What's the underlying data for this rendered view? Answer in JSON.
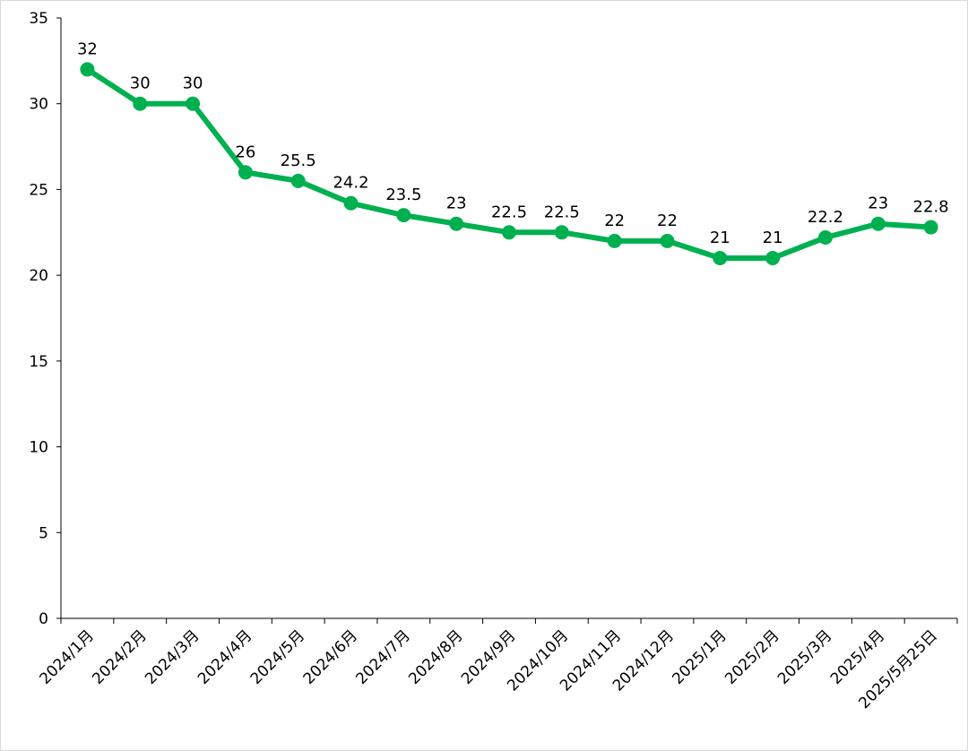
{
  "chart_data": {
    "type": "line",
    "title": "",
    "xlabel": "",
    "ylabel": "",
    "categories": [
      "2024/1月",
      "2024/2月",
      "2024/3月",
      "2024/4月",
      "2024/5月",
      "2024/6月",
      "2024/7月",
      "2024/8月",
      "2024/9月",
      "2024/10月",
      "2024/11月",
      "2024/12月",
      "2025/1月",
      "2025/2月",
      "2025/3月",
      "2025/4月",
      "2025/5月25日"
    ],
    "series": [
      {
        "name": "",
        "values": [
          32,
          30,
          30,
          26,
          25.5,
          24.2,
          23.5,
          23,
          22.5,
          22.5,
          22,
          22,
          21,
          21,
          22.2,
          23,
          22.8
        ],
        "labels": [
          "32",
          "30",
          "30",
          "26",
          "25.5",
          "24.2",
          "23.5",
          "23",
          "22.5",
          "22.5",
          "22",
          "22",
          "21",
          "21",
          "22.2",
          "23",
          "22.8"
        ]
      }
    ],
    "ylim": [
      0,
      35
    ],
    "yticks": [
      "0",
      "5",
      "10",
      "15",
      "20",
      "25",
      "30",
      "35"
    ],
    "grid": false,
    "legend": "none",
    "colors": {
      "line": "#00b050",
      "axis": "#000000"
    }
  }
}
